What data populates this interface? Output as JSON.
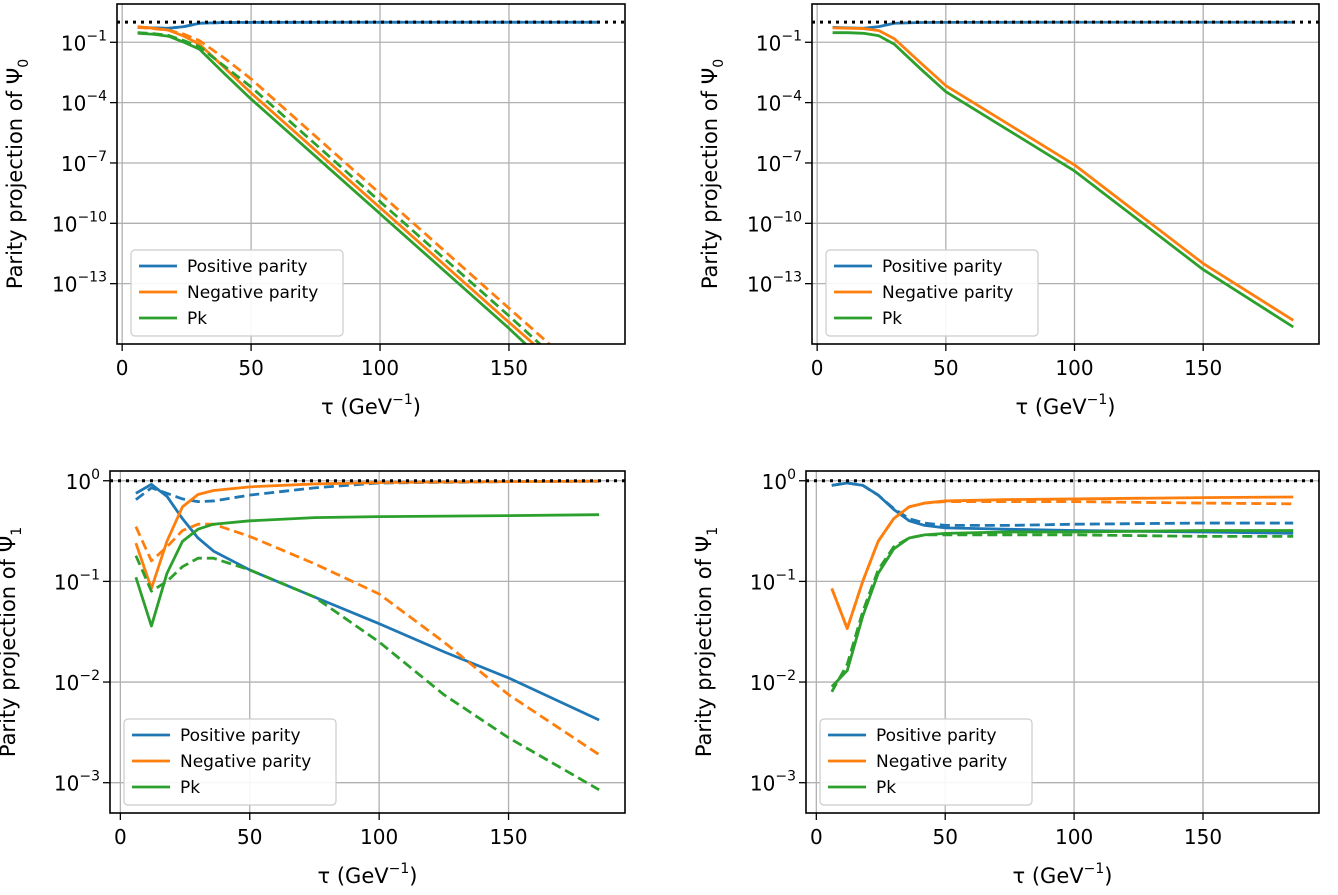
{
  "colors": {
    "positive": "#1f77b4",
    "negative": "#ff7f0e",
    "pk": "#2ca02c",
    "reference": "#000000",
    "grid": "#b0b0b0"
  },
  "chart_data": [
    {
      "type": "line",
      "panel": "top-left",
      "ylabel": {
        "text": "Parity projection of Ψ",
        "sub": "0"
      },
      "xlabel": {
        "text": "τ (GeV",
        "sup": "−1",
        "tail": ")"
      },
      "yscale": "log",
      "xlim": [
        -2,
        195
      ],
      "ylim": [
        1e-16,
        8
      ],
      "xticks": [
        0,
        50,
        100,
        150
      ],
      "yticks": [
        {
          "value": 0.1,
          "base": "10",
          "exp": "−1"
        },
        {
          "value": 0.0001,
          "base": "10",
          "exp": "−4"
        },
        {
          "value": 1e-07,
          "base": "10",
          "exp": "−7"
        },
        {
          "value": 1e-10,
          "base": "10",
          "exp": "−10"
        },
        {
          "value": 1e-13,
          "base": "10",
          "exp": "−13"
        }
      ],
      "reference_line": {
        "y": 1.0,
        "style": "dotted"
      },
      "grid": true,
      "legend": {
        "position": "lower-left",
        "entries": [
          "Positive parity",
          "Negative parity",
          "Pk"
        ]
      },
      "series": [
        {
          "key": "positive",
          "style": "solid",
          "x": [
            6,
            12,
            18,
            24,
            30,
            40,
            50,
            100,
            150,
            185
          ],
          "y": [
            0.55,
            0.52,
            0.5,
            0.6,
            0.88,
            0.96,
            0.98,
            0.99,
            0.99,
            0.99
          ]
        },
        {
          "key": "positive",
          "style": "dashed",
          "x": [
            6,
            12,
            18,
            24,
            30,
            40,
            50,
            100,
            150,
            185
          ],
          "y": [
            0.55,
            0.52,
            0.5,
            0.6,
            0.88,
            0.96,
            0.98,
            0.99,
            0.99,
            0.99
          ]
        },
        {
          "key": "negative",
          "style": "solid",
          "x": [
            6,
            12,
            18,
            24,
            30,
            40,
            50,
            100,
            150,
            172
          ],
          "y": [
            0.6,
            0.5,
            0.4,
            0.2,
            0.08,
            0.005,
            0.0003,
            6e-10,
            1.2e-15,
            4e-18
          ]
        },
        {
          "key": "negative",
          "style": "dashed",
          "x": [
            6,
            12,
            18,
            24,
            30,
            40,
            50,
            100,
            150,
            178
          ],
          "y": [
            0.55,
            0.48,
            0.4,
            0.25,
            0.12,
            0.015,
            0.0015,
            3e-09,
            6e-15,
            4e-18
          ]
        },
        {
          "key": "pk",
          "style": "solid",
          "x": [
            6,
            12,
            18,
            24,
            30,
            40,
            50,
            100,
            150,
            168
          ],
          "y": [
            0.28,
            0.25,
            0.2,
            0.1,
            0.045,
            0.0025,
            0.00015,
            3e-10,
            6e-16,
            4e-18
          ]
        },
        {
          "key": "pk",
          "style": "dashed",
          "x": [
            6,
            12,
            18,
            24,
            30,
            40,
            50,
            100,
            150,
            174
          ],
          "y": [
            0.3,
            0.27,
            0.22,
            0.12,
            0.06,
            0.006,
            0.0006,
            1.2e-09,
            2.5e-15,
            4e-18
          ]
        }
      ]
    },
    {
      "type": "line",
      "panel": "top-right",
      "ylabel": {
        "text": "Parity projection of Ψ",
        "sub": "0"
      },
      "xlabel": {
        "text": "τ (GeV",
        "sup": "−1",
        "tail": ")"
      },
      "yscale": "log",
      "xlim": [
        -2,
        195
      ],
      "ylim": [
        1e-16,
        8
      ],
      "xticks": [
        0,
        50,
        100,
        150
      ],
      "yticks": [
        {
          "value": 0.1,
          "base": "10",
          "exp": "−1"
        },
        {
          "value": 0.0001,
          "base": "10",
          "exp": "−4"
        },
        {
          "value": 1e-07,
          "base": "10",
          "exp": "−7"
        },
        {
          "value": 1e-10,
          "base": "10",
          "exp": "−10"
        },
        {
          "value": 1e-13,
          "base": "10",
          "exp": "−13"
        }
      ],
      "reference_line": {
        "y": 1.0,
        "style": "dotted"
      },
      "grid": true,
      "legend": {
        "position": "lower-left",
        "entries": [
          "Positive parity",
          "Negative parity",
          "Pk"
        ]
      },
      "series": [
        {
          "key": "positive",
          "style": "solid",
          "x": [
            6,
            12,
            18,
            24,
            30,
            40,
            50,
            100,
            150,
            185
          ],
          "y": [
            0.55,
            0.52,
            0.5,
            0.6,
            0.88,
            0.96,
            0.98,
            0.99,
            0.99,
            0.99
          ]
        },
        {
          "key": "negative",
          "style": "solid",
          "x": [
            6,
            12,
            18,
            24,
            30,
            40,
            50,
            100,
            150,
            185
          ],
          "y": [
            0.52,
            0.5,
            0.48,
            0.38,
            0.15,
            0.01,
            0.0007,
            8e-08,
            1e-12,
            1.5e-15
          ]
        },
        {
          "key": "pk",
          "style": "solid",
          "x": [
            6,
            12,
            18,
            24,
            30,
            40,
            50,
            100,
            150,
            185
          ],
          "y": [
            0.3,
            0.3,
            0.28,
            0.21,
            0.08,
            0.005,
            0.00035,
            4e-08,
            5e-13,
            7e-16
          ]
        }
      ]
    },
    {
      "type": "line",
      "panel": "bottom-left",
      "ylabel": {
        "text": "Parity projection of Ψ",
        "sub": "1"
      },
      "xlabel": {
        "text": "τ (GeV",
        "sup": "−1",
        "tail": ")"
      },
      "yscale": "log",
      "xlim": [
        -4,
        195
      ],
      "ylim": [
        0.0005,
        1.25
      ],
      "xticks": [
        0,
        50,
        100,
        150
      ],
      "yticks": [
        {
          "value": 1,
          "base": "10",
          "exp": "0"
        },
        {
          "value": 0.1,
          "base": "10",
          "exp": "−1"
        },
        {
          "value": 0.01,
          "base": "10",
          "exp": "−2"
        },
        {
          "value": 0.001,
          "base": "10",
          "exp": "−3"
        }
      ],
      "reference_line": {
        "y": 1.0,
        "style": "dotted"
      },
      "grid": true,
      "legend": {
        "position": "lower-left",
        "entries": [
          "Positive parity",
          "Negative parity",
          "Pk"
        ]
      },
      "series": [
        {
          "key": "positive",
          "style": "solid",
          "x": [
            6,
            12,
            18,
            24,
            30,
            36,
            50,
            75,
            100,
            125,
            150,
            185
          ],
          "y": [
            0.75,
            0.92,
            0.7,
            0.42,
            0.27,
            0.2,
            0.13,
            0.07,
            0.038,
            0.02,
            0.011,
            0.0042
          ]
        },
        {
          "key": "positive",
          "style": "dashed",
          "x": [
            6,
            12,
            18,
            24,
            30,
            36,
            50,
            75,
            100,
            150,
            185
          ],
          "y": [
            0.65,
            0.85,
            0.75,
            0.66,
            0.62,
            0.63,
            0.72,
            0.85,
            0.95,
            0.98,
            0.99
          ]
        },
        {
          "key": "negative",
          "style": "solid",
          "x": [
            6,
            12,
            18,
            24,
            30,
            36,
            50,
            75,
            100,
            150,
            185
          ],
          "y": [
            0.24,
            0.085,
            0.25,
            0.55,
            0.73,
            0.8,
            0.87,
            0.93,
            0.96,
            0.98,
            0.99
          ]
        },
        {
          "key": "negative",
          "style": "dashed",
          "x": [
            6,
            12,
            18,
            24,
            30,
            36,
            50,
            75,
            100,
            125,
            150,
            185
          ],
          "y": [
            0.35,
            0.16,
            0.22,
            0.32,
            0.37,
            0.37,
            0.28,
            0.15,
            0.075,
            0.025,
            0.0075,
            0.0019
          ]
        },
        {
          "key": "pk",
          "style": "solid",
          "x": [
            6,
            12,
            18,
            24,
            30,
            36,
            50,
            75,
            100,
            150,
            185
          ],
          "y": [
            0.11,
            0.036,
            0.12,
            0.25,
            0.33,
            0.37,
            0.4,
            0.43,
            0.44,
            0.45,
            0.46
          ]
        },
        {
          "key": "pk",
          "style": "dashed",
          "x": [
            6,
            12,
            18,
            24,
            30,
            36,
            50,
            75,
            100,
            125,
            150,
            185
          ],
          "y": [
            0.18,
            0.08,
            0.1,
            0.14,
            0.17,
            0.17,
            0.13,
            0.07,
            0.025,
            0.0075,
            0.0028,
            0.00085
          ]
        }
      ]
    },
    {
      "type": "line",
      "panel": "bottom-right",
      "ylabel": {
        "text": "Parity projection of Ψ",
        "sub": "1"
      },
      "xlabel": {
        "text": "τ (GeV",
        "sup": "−1",
        "tail": ")"
      },
      "yscale": "log",
      "xlim": [
        -4,
        195
      ],
      "ylim": [
        0.0005,
        1.25
      ],
      "xticks": [
        0,
        50,
        100,
        150
      ],
      "yticks": [
        {
          "value": 1,
          "base": "10",
          "exp": "0"
        },
        {
          "value": 0.1,
          "base": "10",
          "exp": "−1"
        },
        {
          "value": 0.01,
          "base": "10",
          "exp": "−2"
        },
        {
          "value": 0.001,
          "base": "10",
          "exp": "−3"
        }
      ],
      "reference_line": {
        "y": 1.0,
        "style": "dotted"
      },
      "grid": true,
      "legend": {
        "position": "lower-left",
        "entries": [
          "Positive parity",
          "Negative parity",
          "Pk"
        ]
      },
      "series": [
        {
          "key": "positive",
          "style": "solid",
          "x": [
            6,
            12,
            18,
            24,
            30,
            36,
            42,
            50,
            75,
            100,
            150,
            185
          ],
          "y": [
            0.9,
            0.95,
            0.9,
            0.72,
            0.52,
            0.4,
            0.36,
            0.34,
            0.33,
            0.32,
            0.31,
            0.3
          ]
        },
        {
          "key": "positive",
          "style": "dashed",
          "x": [
            6,
            12,
            18,
            24,
            30,
            36,
            42,
            50,
            75,
            100,
            150,
            185
          ],
          "y": [
            0.9,
            0.95,
            0.9,
            0.72,
            0.53,
            0.42,
            0.38,
            0.36,
            0.36,
            0.37,
            0.38,
            0.38
          ]
        },
        {
          "key": "negative",
          "style": "solid",
          "x": [
            6,
            12,
            18,
            24,
            30,
            36,
            42,
            50,
            75,
            100,
            150,
            185
          ],
          "y": [
            0.085,
            0.034,
            0.1,
            0.25,
            0.42,
            0.55,
            0.6,
            0.63,
            0.65,
            0.66,
            0.68,
            0.69
          ]
        },
        {
          "key": "negative",
          "style": "dashed",
          "x": [
            6,
            12,
            18,
            24,
            30,
            36,
            42,
            50,
            75,
            100,
            150,
            185
          ],
          "y": [
            0.085,
            0.034,
            0.1,
            0.25,
            0.42,
            0.55,
            0.6,
            0.62,
            0.62,
            0.62,
            0.6,
            0.59
          ]
        },
        {
          "key": "pk",
          "style": "solid",
          "x": [
            6,
            12,
            18,
            24,
            30,
            36,
            42,
            50,
            75,
            100,
            150,
            185
          ],
          "y": [
            0.009,
            0.013,
            0.045,
            0.12,
            0.21,
            0.27,
            0.29,
            0.3,
            0.31,
            0.31,
            0.32,
            0.32
          ]
        },
        {
          "key": "pk",
          "style": "dashed",
          "x": [
            6,
            12,
            18,
            24,
            30,
            36,
            42,
            50,
            75,
            100,
            150,
            185
          ],
          "y": [
            0.008,
            0.015,
            0.05,
            0.13,
            0.22,
            0.27,
            0.29,
            0.29,
            0.29,
            0.29,
            0.28,
            0.28
          ]
        }
      ]
    }
  ]
}
